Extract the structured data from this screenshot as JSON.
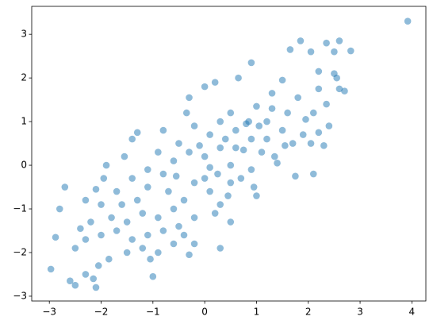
{
  "chart_data": {
    "type": "scatter",
    "x": [
      3.92,
      2.82,
      2.6,
      2.35,
      1.85,
      2.5,
      2.05,
      1.65,
      2.2,
      2.5,
      2.6,
      2.7,
      2.55,
      2.2,
      2.35,
      2.1,
      1.95,
      2.3,
      2.4,
      2.2,
      1.8,
      1.5,
      1.3,
      1.0,
      0.9,
      0.65,
      0.2,
      0.0,
      -0.3,
      0.5,
      0.8,
      1.2,
      1.5,
      1.7,
      2.1,
      1.75,
      1.4,
      1.1,
      0.9,
      0.6,
      0.3,
      0.1,
      -0.2,
      -0.5,
      -0.8,
      -1.3,
      -1.4,
      -1.55,
      -1.9,
      -1.95,
      -2.1,
      -2.3,
      -2.0,
      -1.7,
      -1.4,
      -1.1,
      -0.8,
      -0.6,
      -0.3,
      0.0,
      0.3,
      0.5,
      0.7,
      0.9,
      1.0,
      0.95,
      0.5,
      0.3,
      0.1,
      -0.2,
      -0.4,
      -0.6,
      -0.9,
      -1.2,
      -1.5,
      -1.8,
      -2.2,
      -2.3,
      -2.0,
      -1.7,
      -1.4,
      -1.1,
      -0.8,
      -0.5,
      -0.2,
      0.2,
      0.5,
      0.3,
      -0.2,
      -0.6,
      -0.9,
      -1.2,
      -1.5,
      -1.85,
      -2.05,
      -2.3,
      -2.15,
      -2.1,
      -2.6,
      -2.5,
      -2.97,
      -2.88,
      -2.8,
      -2.7,
      -2.5,
      -2.4,
      -1.0,
      -1.05,
      -0.3,
      -0.4,
      0.1,
      -0.1,
      0.4,
      0.75,
      1.3,
      1.6,
      1.9,
      2.05,
      1.2,
      -0.9,
      -1.1,
      -0.7,
      -1.6,
      -1.3,
      0.0,
      0.25,
      0.6,
      0.85,
      1.05,
      -0.35,
      -0.55,
      0.45,
      1.35,
      1.55
    ],
    "values": [
      3.3,
      2.62,
      2.85,
      2.8,
      2.85,
      2.6,
      2.6,
      2.65,
      2.15,
      2.1,
      1.75,
      1.7,
      2.0,
      1.75,
      1.4,
      1.2,
      1.05,
      0.45,
      0.9,
      0.75,
      1.55,
      1.95,
      1.65,
      1.35,
      2.35,
      2.0,
      1.9,
      1.8,
      1.55,
      1.2,
      0.95,
      1.0,
      0.8,
      0.5,
      -0.2,
      -0.25,
      0.05,
      0.3,
      0.6,
      0.8,
      1.0,
      0.7,
      0.9,
      0.5,
      0.8,
      0.75,
      0.6,
      0.2,
      0.0,
      -0.3,
      -0.55,
      -0.8,
      -0.9,
      -0.6,
      -0.3,
      -0.5,
      -0.2,
      0.1,
      0.3,
      0.2,
      0.4,
      0.0,
      -0.3,
      -0.1,
      -0.7,
      -0.5,
      -0.4,
      -0.9,
      -0.6,
      -0.4,
      -0.8,
      -1.0,
      -1.2,
      -1.1,
      -1.3,
      -1.2,
      -1.3,
      -1.7,
      -1.6,
      -1.5,
      -1.7,
      -1.6,
      -1.5,
      -1.4,
      -1.2,
      -1.1,
      -1.3,
      -1.9,
      -1.8,
      -1.8,
      -2.0,
      -1.9,
      -2.0,
      -2.15,
      -2.3,
      -2.5,
      -2.6,
      -2.8,
      -2.65,
      -2.75,
      -2.38,
      -1.65,
      -1.0,
      -0.5,
      -1.9,
      -1.45,
      -2.55,
      -2.15,
      -2.05,
      -1.6,
      -0.05,
      0.45,
      0.6,
      0.35,
      1.3,
      1.2,
      0.7,
      0.5,
      0.6,
      0.3,
      -0.1,
      -0.6,
      -0.9,
      -0.8,
      -0.3,
      -0.2,
      0.4,
      1.0,
      0.9,
      1.2,
      -0.25,
      -0.7,
      0.2,
      0.45
    ],
    "color": "#1f77b4",
    "alpha": 0.5,
    "xlim": [
      -3.34,
      4.27
    ],
    "ylim": [
      -3.11,
      3.64
    ],
    "xticks": [
      {
        "value": -3,
        "label": "−3"
      },
      {
        "value": -2,
        "label": "−2"
      },
      {
        "value": -1,
        "label": "−1"
      },
      0,
      1,
      2,
      3,
      4
    ],
    "yticks": [
      {
        "value": -3,
        "label": "−3"
      },
      {
        "value": -2,
        "label": "−2"
      },
      {
        "value": -1,
        "label": "−1"
      },
      0,
      1,
      2,
      3
    ]
  }
}
